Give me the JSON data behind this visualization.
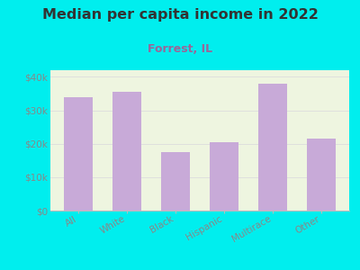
{
  "title": "Median per capita income in 2022",
  "subtitle": "Forrest, IL",
  "categories": [
    "All",
    "White",
    "Black",
    "Hispanic",
    "Multirace",
    "Other"
  ],
  "values": [
    34000,
    35500,
    17500,
    20500,
    38000,
    21500
  ],
  "bar_color": "#c8aad8",
  "background_outer": "#00EEEE",
  "background_inner": "#eef5e0",
  "title_color": "#333333",
  "subtitle_color": "#996699",
  "tick_label_color": "#888888",
  "ylim": [
    0,
    42000
  ],
  "yticks": [
    0,
    10000,
    20000,
    30000,
    40000
  ],
  "ytick_labels": [
    "$0",
    "$10k",
    "$20k",
    "$30k",
    "$40k"
  ],
  "title_fontsize": 11.5,
  "subtitle_fontsize": 9,
  "tick_fontsize": 7.5
}
